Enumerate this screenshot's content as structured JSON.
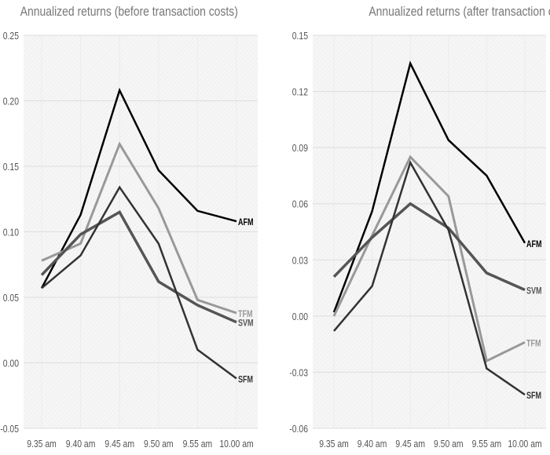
{
  "chart_data": [
    {
      "type": "line",
      "title": "Annualized returns (before transaction costs)",
      "categories": [
        "9.35 am",
        "9.40 am",
        "9.45 am",
        "9.50 am",
        "9.55 am",
        "10.00 am"
      ],
      "ylim": [
        -0.05,
        0.25
      ],
      "yticks": [
        "0.25",
        "0.20",
        "0.15",
        "0.10",
        "0.05",
        "0.00",
        "-0.05"
      ],
      "ytick_values": [
        0.25,
        0.2,
        0.15,
        0.1,
        0.05,
        0.0,
        -0.05
      ],
      "grid": true,
      "series": [
        {
          "name": "AFM",
          "color": "#000000",
          "values": [
            0.057,
            0.113,
            0.208,
            0.147,
            0.116,
            0.108
          ]
        },
        {
          "name": "TFM",
          "color": "#999999",
          "values": [
            0.078,
            0.091,
            0.167,
            0.118,
            0.048,
            0.038
          ]
        },
        {
          "name": "SVM",
          "color": "#555555",
          "values": [
            0.067,
            0.098,
            0.115,
            0.062,
            0.044,
            0.031
          ]
        },
        {
          "name": "SFM",
          "color": "#333333",
          "values": [
            0.057,
            0.082,
            0.134,
            0.091,
            0.01,
            -0.012
          ]
        }
      ]
    },
    {
      "type": "line",
      "title": "Annualized returns (after transaction costs)",
      "categories": [
        "9.35 am",
        "9.40 am",
        "9.45 am",
        "9.50 am",
        "9.55 am",
        "10.00 am"
      ],
      "ylim": [
        -0.06,
        0.15
      ],
      "yticks": [
        "0.15",
        "0.12",
        "0.09",
        "0.06",
        "0.03",
        "0.00",
        "-0.03",
        "-0.06"
      ],
      "ytick_values": [
        0.15,
        0.12,
        0.09,
        0.06,
        0.03,
        0.0,
        -0.03,
        -0.06
      ],
      "grid": true,
      "series": [
        {
          "name": "AFM",
          "color": "#000000",
          "values": [
            0.002,
            0.056,
            0.135,
            0.094,
            0.075,
            0.039
          ]
        },
        {
          "name": "TFM",
          "color": "#999999",
          "values": [
            0.0,
            0.043,
            0.085,
            0.064,
            -0.024,
            -0.014
          ]
        },
        {
          "name": "SVM",
          "color": "#555555",
          "values": [
            0.021,
            0.042,
            0.06,
            0.047,
            0.023,
            0.014
          ]
        },
        {
          "name": "SFM",
          "color": "#333333",
          "values": [
            -0.008,
            0.016,
            0.082,
            0.046,
            -0.028,
            -0.042
          ]
        }
      ]
    }
  ]
}
